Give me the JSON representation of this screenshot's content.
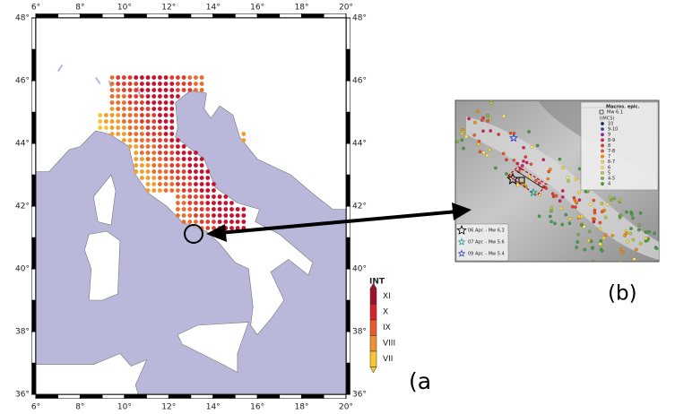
{
  "map_a": {
    "xticks": [
      {
        "value": 6,
        "label": "6°"
      },
      {
        "value": 8,
        "label": "8°"
      },
      {
        "value": 10,
        "label": "10°"
      },
      {
        "value": 12,
        "label": "12°"
      },
      {
        "value": 14,
        "label": "14°"
      },
      {
        "value": 16,
        "label": "16°"
      },
      {
        "value": 18,
        "label": "18°"
      },
      {
        "value": 20,
        "label": "20°"
      }
    ],
    "yticks": [
      {
        "value": 36,
        "label": "36°"
      },
      {
        "value": 38,
        "label": "38°"
      },
      {
        "value": 40,
        "label": "40°"
      },
      {
        "value": 42,
        "label": "42°"
      },
      {
        "value": 44,
        "label": "44°"
      },
      {
        "value": 46,
        "label": "46°"
      },
      {
        "value": 48,
        "label": "48°"
      }
    ],
    "legend": {
      "title": "INT",
      "classes": [
        "XI",
        "X",
        "IX",
        "VIII",
        "VII"
      ]
    },
    "panel_label": "(a"
  },
  "map_b": {
    "legend": {
      "title": "Macros. epic.",
      "epicenter": "Mw 6.1",
      "scale": "I(MCS)",
      "classes": [
        "10",
        "9-10",
        "9",
        "8-9",
        "8",
        "7-8",
        "7",
        "6-7",
        "6",
        "5",
        "4-5",
        "4"
      ]
    },
    "events": [
      "06 Apr. - Mw 6.3",
      "07 Apr. - Mw 5.6",
      "09 Apr. - Mw 5.4"
    ],
    "panel_label": "(b)"
  }
}
